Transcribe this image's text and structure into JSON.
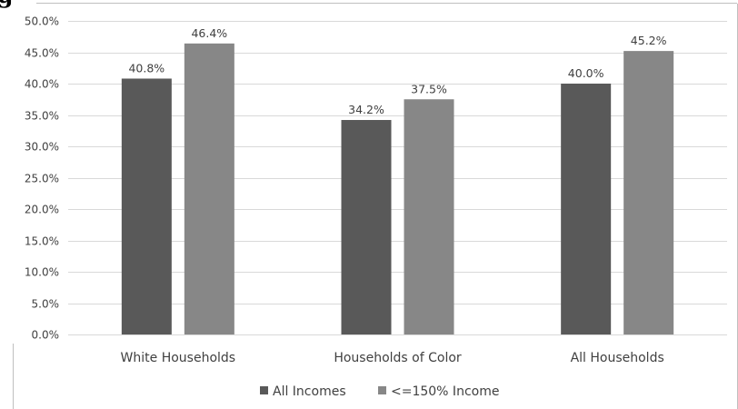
{
  "header_fragment": "g",
  "colors": {
    "series1": "#595959",
    "series2": "#878787",
    "grid": "#d9d9d9",
    "text": "#404040"
  },
  "chart_data": {
    "type": "bar",
    "categories": [
      "White Households",
      "Households of Color",
      "All Households"
    ],
    "series": [
      {
        "name": "All Incomes",
        "values": [
          40.8,
          34.2,
          40.0
        ],
        "labels": [
          "40.8%",
          "34.2%",
          "40.0%"
        ]
      },
      {
        "name": "<=150% Income",
        "values": [
          46.4,
          37.5,
          45.2
        ],
        "labels": [
          "46.4%",
          "37.5%",
          "45.2%"
        ]
      }
    ],
    "ylim": [
      0,
      50
    ],
    "yticks": [
      "0.0%",
      "5.0%",
      "10.0%",
      "15.0%",
      "20.0%",
      "25.0%",
      "30.0%",
      "35.0%",
      "40.0%",
      "45.0%",
      "50.0%"
    ],
    "grid": true,
    "legend_position": "bottom",
    "title": "",
    "xlabel": "",
    "ylabel": ""
  }
}
